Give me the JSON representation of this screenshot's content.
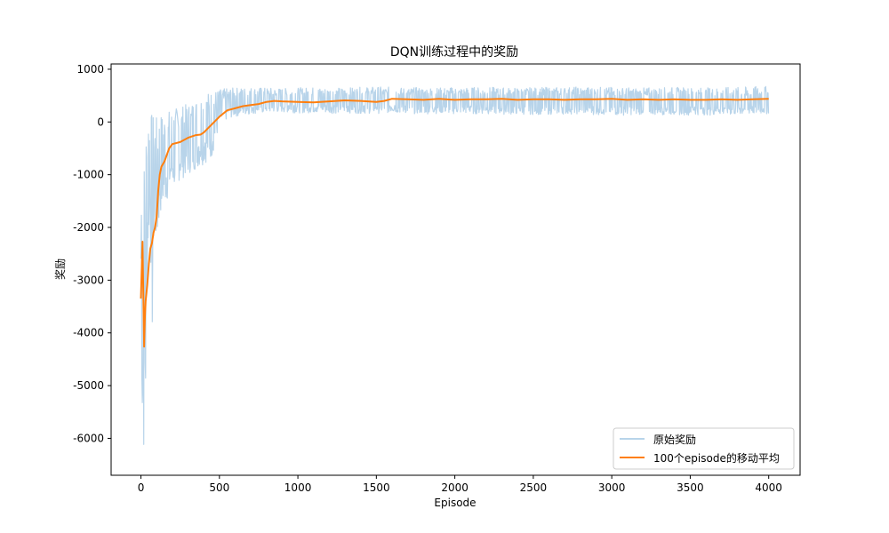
{
  "chart_data": {
    "type": "line",
    "title": "DQN训练过程中的奖励",
    "xlabel": "Episode",
    "ylabel": "奖励",
    "xlim": [
      -190,
      4200
    ],
    "ylim": [
      -6700,
      1100
    ],
    "x_ticks": [
      0,
      500,
      1000,
      1500,
      2000,
      2500,
      3000,
      3500,
      4000
    ],
    "y_ticks": [
      1000,
      0,
      -1000,
      -2000,
      -3000,
      -4000,
      -5000,
      -6000
    ],
    "legend_position": "lower right",
    "grid": false,
    "series": [
      {
        "name": "原始奖励",
        "color": "#b8d4ea",
        "x": [
          0,
          10,
          20,
          30,
          40,
          50,
          60,
          70,
          80,
          90,
          100,
          120,
          150,
          200,
          250,
          300,
          350,
          400,
          450,
          500,
          550,
          600,
          700,
          800,
          900,
          1000,
          1100,
          1200,
          1300,
          1400,
          1500,
          1600,
          1700,
          1800,
          1900,
          2000,
          2200,
          2400,
          2600,
          2800,
          3000,
          3200,
          3400,
          3600,
          3800,
          4000
        ],
        "values": [
          -3300,
          -6300,
          -6400,
          -5900,
          -2600,
          -600,
          -1900,
          -4500,
          -2000,
          -1600,
          -2500,
          -1400,
          -700,
          -900,
          -600,
          -500,
          -350,
          -300,
          -100,
          100,
          200,
          250,
          300,
          350,
          400,
          380,
          400,
          420,
          400,
          410,
          420,
          440,
          420,
          430,
          440,
          420,
          430,
          420,
          430,
          440,
          430,
          420,
          430,
          420,
          430,
          440
        ],
        "envelope_upper": [
          -650,
          -1400,
          -600,
          200,
          250,
          300,
          250,
          200,
          150,
          100,
          100,
          150,
          200,
          250,
          300,
          350,
          450,
          550,
          600,
          620,
          640,
          650,
          660,
          650,
          640,
          650,
          660,
          650,
          650,
          660,
          670,
          660,
          650,
          660,
          650,
          660,
          660,
          650,
          660,
          670,
          660,
          650,
          660,
          650,
          660,
          680
        ],
        "envelope_lower": [
          -3400,
          -6300,
          -6400,
          -5900,
          -3000,
          -2200,
          -2000,
          -4500,
          -2500,
          -2000,
          -2500,
          -1800,
          -1600,
          -1300,
          -1100,
          -1000,
          -900,
          -800,
          -700,
          -100,
          50,
          100,
          150,
          170,
          180,
          170,
          170,
          160,
          170,
          160,
          160,
          170,
          160,
          150,
          160,
          150,
          150,
          140,
          140,
          150,
          120,
          140,
          130,
          130,
          120,
          150
        ]
      },
      {
        "name": "100个episode的移动平均",
        "color": "#ff7f0e",
        "x": [
          0,
          10,
          20,
          25,
          30,
          40,
          50,
          60,
          70,
          80,
          90,
          100,
          110,
          120,
          130,
          150,
          180,
          200,
          250,
          300,
          350,
          380,
          400,
          450,
          500,
          550,
          600,
          650,
          700,
          750,
          800,
          850,
          900,
          1000,
          1100,
          1200,
          1300,
          1400,
          1500,
          1550,
          1600,
          1700,
          1800,
          1900,
          2000,
          2100,
          2200,
          2300,
          2400,
          2500,
          2600,
          2700,
          2800,
          2900,
          3000,
          3100,
          3200,
          3300,
          3400,
          3500,
          3600,
          3700,
          3800,
          3900,
          4000
        ],
        "values": [
          -3350,
          -2270,
          -4260,
          -3700,
          -3400,
          -3100,
          -2700,
          -2400,
          -2300,
          -2100,
          -2000,
          -1800,
          -1300,
          -1000,
          -850,
          -750,
          -500,
          -420,
          -380,
          -300,
          -250,
          -240,
          -200,
          -50,
          100,
          220,
          260,
          300,
          320,
          340,
          380,
          400,
          390,
          380,
          370,
          390,
          410,
          400,
          380,
          400,
          440,
          430,
          420,
          440,
          420,
          430,
          430,
          440,
          420,
          430,
          430,
          420,
          430,
          430,
          440,
          420,
          430,
          420,
          430,
          420,
          420,
          430,
          420,
          430,
          440
        ]
      }
    ]
  }
}
